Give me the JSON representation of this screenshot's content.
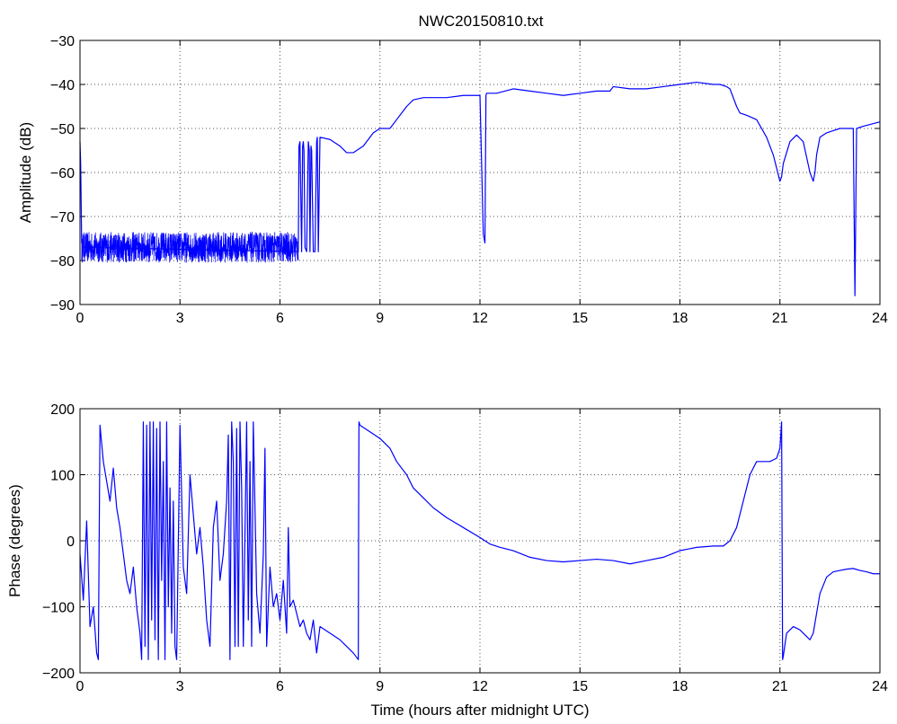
{
  "figure": {
    "title": "NWC20150810.txt"
  },
  "chart_data": [
    {
      "type": "line",
      "title": "NWC20150810.txt",
      "xlabel": "",
      "ylabel": "Amplitude (dB)",
      "xlim": [
        0,
        24
      ],
      "ylim": [
        -90,
        -30
      ],
      "xticks": [
        0,
        3,
        6,
        9,
        12,
        15,
        18,
        21,
        24
      ],
      "yticks": [
        -90,
        -80,
        -70,
        -60,
        -50,
        -40,
        -30
      ],
      "grid": true,
      "line_color": "#0000ff",
      "noise_bands": [
        {
          "x_start": 0.05,
          "x_end": 6.55,
          "y_low": -80.5,
          "y_high": -73.5
        }
      ],
      "series": [
        {
          "x": [
            0,
            0.02,
            0.04,
            0.05,
            0.1,
            6.55,
            6.57,
            6.6,
            6.65,
            6.68,
            6.7,
            6.72,
            6.75,
            6.8,
            6.85,
            6.88,
            6.9,
            6.93,
            6.95,
            7.0,
            7.05,
            7.1,
            7.12,
            7.15,
            7.2,
            7.5,
            7.8,
            8.0,
            8.2,
            8.3,
            8.5,
            8.8,
            9.0,
            9.3,
            9.5,
            9.8,
            10.0,
            10.3,
            10.5,
            11.0,
            11.5,
            12.0,
            12.1,
            12.15,
            12.18,
            12.2,
            12.25,
            12.3,
            12.5,
            13.0,
            13.5,
            14.0,
            14.5,
            15.0,
            15.5,
            15.9,
            16.0,
            16.5,
            17.0,
            17.5,
            18.0,
            18.5,
            19.0,
            19.2,
            19.4,
            19.5,
            19.7,
            19.8,
            20.0,
            20.3,
            20.6,
            20.8,
            21.0,
            21.05,
            21.1,
            21.3,
            21.5,
            21.7,
            21.9,
            22.0,
            22.05,
            22.1,
            22.2,
            22.4,
            22.6,
            22.8,
            23.0,
            23.2,
            23.25,
            23.3,
            23.5,
            24.0
          ],
          "y": [
            -53,
            -58,
            -70,
            -76,
            -77,
            -78,
            -54,
            -53,
            -78,
            -54,
            -53,
            -55,
            -77,
            -78,
            -53,
            -55,
            -78,
            -54,
            -55,
            -78,
            -78,
            -53,
            -52,
            -78,
            -52,
            -52.5,
            -54,
            -55.5,
            -55.5,
            -55,
            -54,
            -51,
            -50,
            -50,
            -48,
            -45,
            -43.5,
            -43,
            -43,
            -43,
            -42.5,
            -42.5,
            -74,
            -76,
            -42.5,
            -42,
            -42,
            -42,
            -42,
            -41,
            -41.5,
            -42,
            -42.5,
            -42,
            -41.5,
            -41.5,
            -40.5,
            -41,
            -41,
            -40.5,
            -40,
            -39.5,
            -40,
            -40,
            -40.5,
            -41,
            -45,
            -46.5,
            -47,
            -48,
            -52,
            -56,
            -62,
            -61,
            -58,
            -53,
            -51.5,
            -53,
            -60,
            -62,
            -60,
            -56,
            -52,
            -51,
            -50.5,
            -50,
            -50,
            -50,
            -88,
            -50,
            -49.5,
            -48.5
          ]
        }
      ]
    },
    {
      "type": "line",
      "title": "",
      "xlabel": "Time (hours after midnight UTC)",
      "ylabel": "Phase (degrees)",
      "xlim": [
        0,
        24
      ],
      "ylim": [
        -200,
        200
      ],
      "xticks": [
        0,
        3,
        6,
        9,
        12,
        15,
        18,
        21,
        24
      ],
      "yticks": [
        -200,
        -100,
        0,
        100,
        200
      ],
      "grid": true,
      "line_color": "#0000ff",
      "series": [
        {
          "x": [
            0,
            0.1,
            0.2,
            0.3,
            0.4,
            0.5,
            0.55,
            0.6,
            0.7,
            0.8,
            0.9,
            1.0,
            1.1,
            1.2,
            1.3,
            1.4,
            1.5,
            1.6,
            1.7,
            1.8,
            1.85,
            1.9,
            1.95,
            2.0,
            2.05,
            2.1,
            2.15,
            2.2,
            2.25,
            2.3,
            2.35,
            2.4,
            2.45,
            2.5,
            2.55,
            2.6,
            2.65,
            2.7,
            2.75,
            2.8,
            2.85,
            2.9,
            3.0,
            3.1,
            3.2,
            3.3,
            3.4,
            3.5,
            3.6,
            3.7,
            3.8,
            3.9,
            4.0,
            4.1,
            4.2,
            4.3,
            4.4,
            4.45,
            4.5,
            4.55,
            4.6,
            4.65,
            4.7,
            4.75,
            4.8,
            4.85,
            4.9,
            5.0,
            5.05,
            5.1,
            5.15,
            5.2,
            5.3,
            5.4,
            5.5,
            5.55,
            5.6,
            5.7,
            5.8,
            5.9,
            6.0,
            6.1,
            6.2,
            6.25,
            6.3,
            6.4,
            6.5,
            6.6,
            6.7,
            6.8,
            6.9,
            7.0,
            7.1,
            7.2,
            7.5,
            7.8,
            8.0,
            8.2,
            8.35,
            8.36,
            8.37,
            8.4,
            8.7,
            9.0,
            9.3,
            9.5,
            9.8,
            10.0,
            10.3,
            10.6,
            11.0,
            11.5,
            12.0,
            12.3,
            12.6,
            13.0,
            13.5,
            14.0,
            14.5,
            15.0,
            15.5,
            16.0,
            16.5,
            17.0,
            17.5,
            18.0,
            18.5,
            19.0,
            19.3,
            19.5,
            19.7,
            19.9,
            20.1,
            20.3,
            20.5,
            20.7,
            20.9,
            21.0,
            21.05,
            21.08,
            21.1,
            21.2,
            21.4,
            21.6,
            21.8,
            21.9,
            22.0,
            22.2,
            22.4,
            22.6,
            22.8,
            23.0,
            23.2,
            23.4,
            23.6,
            23.8,
            24.0
          ],
          "y": [
            -20,
            -90,
            30,
            -130,
            -100,
            -170,
            -180,
            175,
            120,
            90,
            60,
            110,
            50,
            20,
            -20,
            -60,
            -80,
            -40,
            -100,
            -140,
            -180,
            180,
            -160,
            175,
            -180,
            180,
            -120,
            180,
            -150,
            170,
            -180,
            180,
            -60,
            120,
            -180,
            180,
            -100,
            80,
            -140,
            60,
            -160,
            -180,
            175,
            -40,
            -80,
            100,
            40,
            -20,
            20,
            -40,
            -120,
            -160,
            20,
            60,
            -60,
            -20,
            60,
            160,
            -180,
            180,
            120,
            -160,
            170,
            -160,
            180,
            80,
            -160,
            180,
            -120,
            120,
            -160,
            180,
            -80,
            -140,
            -20,
            140,
            -160,
            -40,
            -100,
            -80,
            -120,
            -60,
            -140,
            20,
            -100,
            -90,
            -110,
            -130,
            -120,
            -140,
            -150,
            -120,
            -170,
            -130,
            -140,
            -150,
            -160,
            -170,
            -180,
            40,
            180,
            175,
            165,
            155,
            140,
            120,
            100,
            80,
            65,
            50,
            35,
            20,
            5,
            -5,
            -10,
            -15,
            -25,
            -30,
            -32,
            -30,
            -28,
            -30,
            -35,
            -30,
            -25,
            -15,
            -10,
            -8,
            -8,
            0,
            20,
            60,
            100,
            120,
            120,
            120,
            125,
            140,
            180,
            -180,
            -175,
            -140,
            -130,
            -135,
            -145,
            -150,
            -140,
            -80,
            -55,
            -47,
            -45,
            -43,
            -42,
            -45,
            -47,
            -50,
            -50
          ]
        }
      ]
    }
  ]
}
